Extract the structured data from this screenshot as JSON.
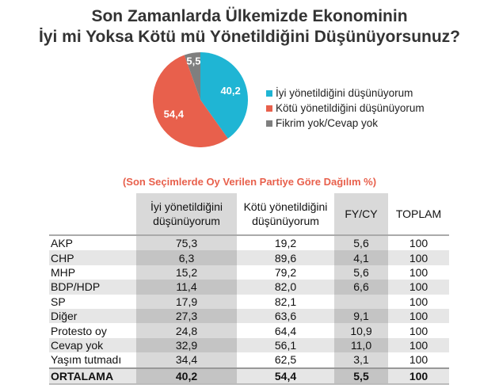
{
  "chart_data": [
    {
      "type": "pie",
      "title": "Son Zamanlarda Ülkemizde Ekonominin İyi mi Yoksa Kötü mü Yönetildiğini Düşünüyorsunuz?",
      "title_lines": [
        "Son Zamanlarda Ülkemizde Ekonominin",
        "İyi mi Yoksa Kötü mü Yönetildiğini Düşünüyorsunuz?"
      ],
      "legend_position": "right",
      "slices": [
        {
          "label": "İyi yönetildiğini düşünüyorum",
          "value": 40.2,
          "display": "40,2",
          "color": "#1fb5d4"
        },
        {
          "label": "Kötü yönetildiğini düşünüyorum",
          "value": 54.4,
          "display": "54,4",
          "color": "#e8604c"
        },
        {
          "label": "Fikrim yok/Cevap yok",
          "value": 5.5,
          "display": "5,5",
          "color": "#7f7f7f"
        }
      ]
    },
    {
      "type": "table",
      "title": "(Son Seçimlerde Oy Verilen Partiye Göre Dağılım %)",
      "columns": [
        "",
        "İyi yönetildiğini düşünüyorum",
        "Kötü yönetildiğini düşünüyorum",
        "FY/CY",
        "TOPLAM"
      ],
      "column_lines": [
        [
          "",
          ""
        ],
        [
          "İyi yönetildiğini",
          "düşünüyorum"
        ],
        [
          "Kötü yönetildiğini",
          "düşünüyorum"
        ],
        [
          "FY/CY",
          ""
        ],
        [
          "TOPLAM",
          ""
        ]
      ],
      "rows": [
        [
          "AKP",
          "75,3",
          "19,2",
          "5,6",
          "100"
        ],
        [
          "CHP",
          "6,3",
          "89,6",
          "4,1",
          "100"
        ],
        [
          "MHP",
          "15,2",
          "79,2",
          "5,6",
          "100"
        ],
        [
          "BDP/HDP",
          "11,4",
          "82,0",
          "6,6",
          "100"
        ],
        [
          "SP",
          "17,9",
          "82,1",
          "",
          "100"
        ],
        [
          "Diğer",
          "27,3",
          "63,6",
          "9,1",
          "100"
        ],
        [
          "Protesto oy",
          "24,8",
          "64,4",
          "10,9",
          "100"
        ],
        [
          "Cevap yok",
          "32,9",
          "56,1",
          "11,0",
          "100"
        ],
        [
          "Yaşım tutmadı",
          "34,4",
          "62,5",
          "3,1",
          "100"
        ],
        [
          "ORTALAMA",
          "40,2",
          "54,4",
          "5,5",
          "100"
        ]
      ]
    }
  ]
}
